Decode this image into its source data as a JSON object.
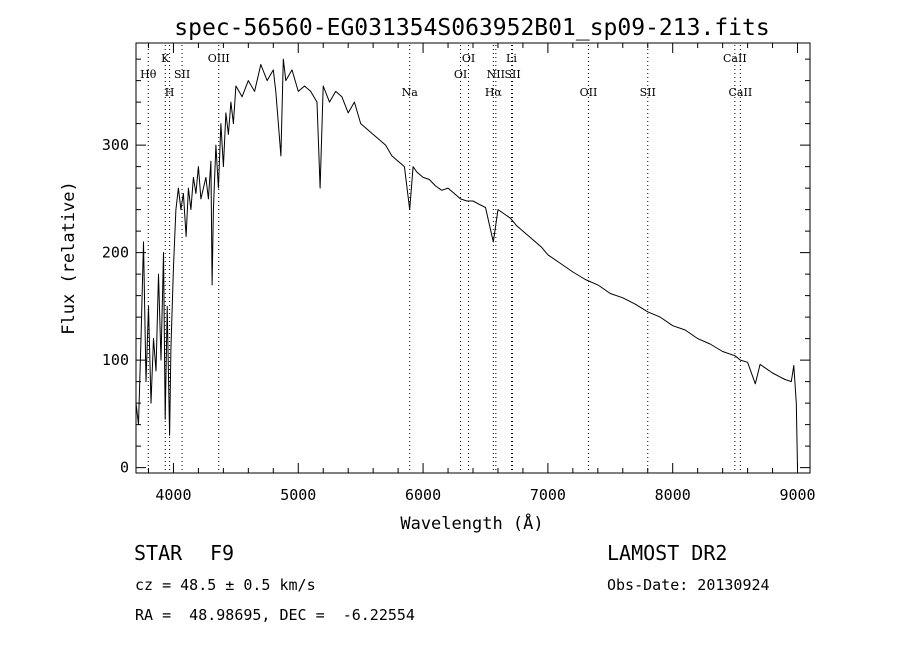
{
  "chart_data": {
    "type": "line",
    "title": "spec-56560-EG031354S063952B01_sp09-213.fits",
    "xlabel": "Wavelength (Å)",
    "ylabel": "Flux (relative)",
    "xlim": [
      3700,
      9100
    ],
    "ylim": [
      -5,
      395
    ],
    "x_ticks": [
      4000,
      5000,
      6000,
      7000,
      8000,
      9000
    ],
    "y_ticks": [
      0,
      100,
      200,
      300
    ],
    "grid": false,
    "series": [
      {
        "x": [
          3700,
          3720,
          3740,
          3760,
          3780,
          3800,
          3820,
          3840,
          3860,
          3880,
          3900,
          3920,
          3934,
          3950,
          3969,
          3980,
          4000,
          4020,
          4040,
          4060,
          4080,
          4101,
          4120,
          4140,
          4160,
          4180,
          4200,
          4220,
          4240,
          4260,
          4280,
          4300,
          4310,
          4320,
          4340,
          4360,
          4380,
          4400,
          4420,
          4440,
          4460,
          4480,
          4500,
          4550,
          4600,
          4650,
          4700,
          4750,
          4800,
          4820,
          4861,
          4880,
          4900,
          4950,
          5000,
          5050,
          5100,
          5150,
          5175,
          5200,
          5250,
          5300,
          5350,
          5400,
          5450,
          5500,
          5550,
          5600,
          5650,
          5700,
          5750,
          5800,
          5850,
          5893,
          5920,
          5950,
          6000,
          6050,
          6100,
          6150,
          6200,
          6250,
          6300,
          6350,
          6400,
          6450,
          6500,
          6563,
          6600,
          6650,
          6700,
          6750,
          6800,
          6850,
          6900,
          6950,
          7000,
          7100,
          7200,
          7300,
          7400,
          7500,
          7600,
          7700,
          7800,
          7900,
          8000,
          8100,
          8200,
          8300,
          8400,
          8500,
          8542,
          8600,
          8662,
          8700,
          8750,
          8800,
          8850,
          8900,
          8950,
          8970,
          8990,
          9000
        ],
        "y": [
          60,
          40,
          120,
          210,
          80,
          150,
          60,
          120,
          90,
          180,
          100,
          200,
          45,
          150,
          30,
          110,
          185,
          240,
          260,
          240,
          255,
          215,
          260,
          240,
          270,
          255,
          280,
          250,
          260,
          270,
          250,
          285,
          170,
          240,
          300,
          260,
          320,
          280,
          330,
          310,
          340,
          320,
          355,
          345,
          360,
          350,
          375,
          360,
          370,
          350,
          290,
          380,
          360,
          370,
          350,
          355,
          350,
          340,
          260,
          355,
          340,
          350,
          345,
          330,
          340,
          320,
          315,
          310,
          305,
          300,
          290,
          285,
          280,
          240,
          280,
          275,
          270,
          268,
          262,
          258,
          260,
          255,
          250,
          248,
          248,
          245,
          242,
          210,
          240,
          236,
          232,
          225,
          220,
          215,
          210,
          205,
          198,
          190,
          182,
          175,
          170,
          162,
          158,
          152,
          145,
          140,
          132,
          128,
          120,
          115,
          108,
          104,
          100,
          98,
          78,
          96,
          92,
          88,
          85,
          82,
          80,
          95,
          60,
          0
        ]
      }
    ],
    "line_markers": [
      {
        "label": "Hθ",
        "x": 3798,
        "row": 2
      },
      {
        "label": "K",
        "x": 3934,
        "row": 1
      },
      {
        "label": "H",
        "x": 3969,
        "row": 3
      },
      {
        "label": "SII",
        "x": 4069,
        "row": 2
      },
      {
        "label": "OIII",
        "x": 4363,
        "row": 1
      },
      {
        "label": "Na",
        "x": 5893,
        "row": 3
      },
      {
        "label": "OI",
        "x": 6300,
        "row": 2
      },
      {
        "label": "OI",
        "x": 6364,
        "row": 1
      },
      {
        "label": "Hα",
        "x": 6563,
        "row": 3
      },
      {
        "label": "NII",
        "x": 6583,
        "row": 2
      },
      {
        "label": "Li",
        "x": 6708,
        "row": 1
      },
      {
        "label": "SII",
        "x": 6717,
        "row": 2
      },
      {
        "label": "OII",
        "x": 7325,
        "row": 3
      },
      {
        "label": "SII",
        "x": 7800,
        "row": 3
      },
      {
        "label": "CaII",
        "x": 8498,
        "row": 1
      },
      {
        "label": "CaII",
        "x": 8542,
        "row": 3
      }
    ]
  },
  "info": {
    "object_class": "STAR",
    "subclass": "F9",
    "survey": "LAMOST DR2",
    "redshift": "cz = 48.5 ± 0.5 km/s",
    "obs_date": "Obs-Date: 20130924",
    "coords": "RA =  48.98695, DEC =  -6.22554"
  }
}
